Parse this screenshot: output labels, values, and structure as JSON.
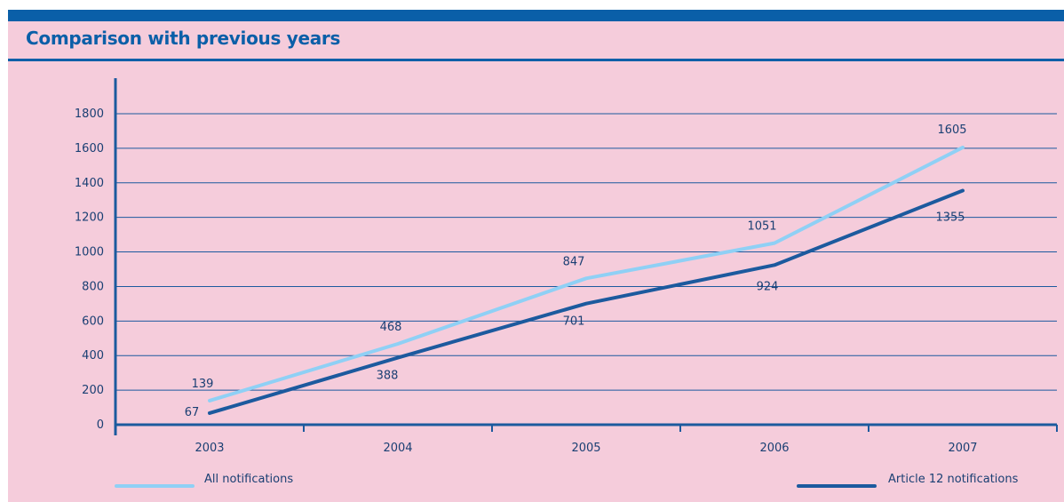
{
  "header": {
    "title": "Comparison with previous years"
  },
  "colors": {
    "accent": "#0a5fa8",
    "background": "#f5ccdb",
    "series_light": "#8fd0f5",
    "series_dark": "#1c5a9e"
  },
  "chart_data": {
    "type": "line",
    "title": "Comparison with previous years",
    "xlabel": "",
    "ylabel": "",
    "categories": [
      "2003",
      "2004",
      "2005",
      "2006",
      "2007"
    ],
    "ylim": [
      0,
      1800
    ],
    "yticks": [
      0,
      200,
      400,
      600,
      800,
      1000,
      1200,
      1400,
      1600,
      1800
    ],
    "grid": true,
    "legend": "bottom",
    "series": [
      {
        "name": "All notifications",
        "color": "#8fd0f5",
        "values": [
          139,
          468,
          847,
          1051,
          1605
        ],
        "labels": [
          "139",
          "468",
          "847",
          "1051",
          "1605"
        ]
      },
      {
        "name": "Article 12 notifications",
        "color": "#1c5a9e",
        "values": [
          67,
          388,
          701,
          924,
          1355
        ],
        "labels": [
          "67",
          "388",
          "701",
          "924",
          "1355"
        ]
      }
    ]
  }
}
